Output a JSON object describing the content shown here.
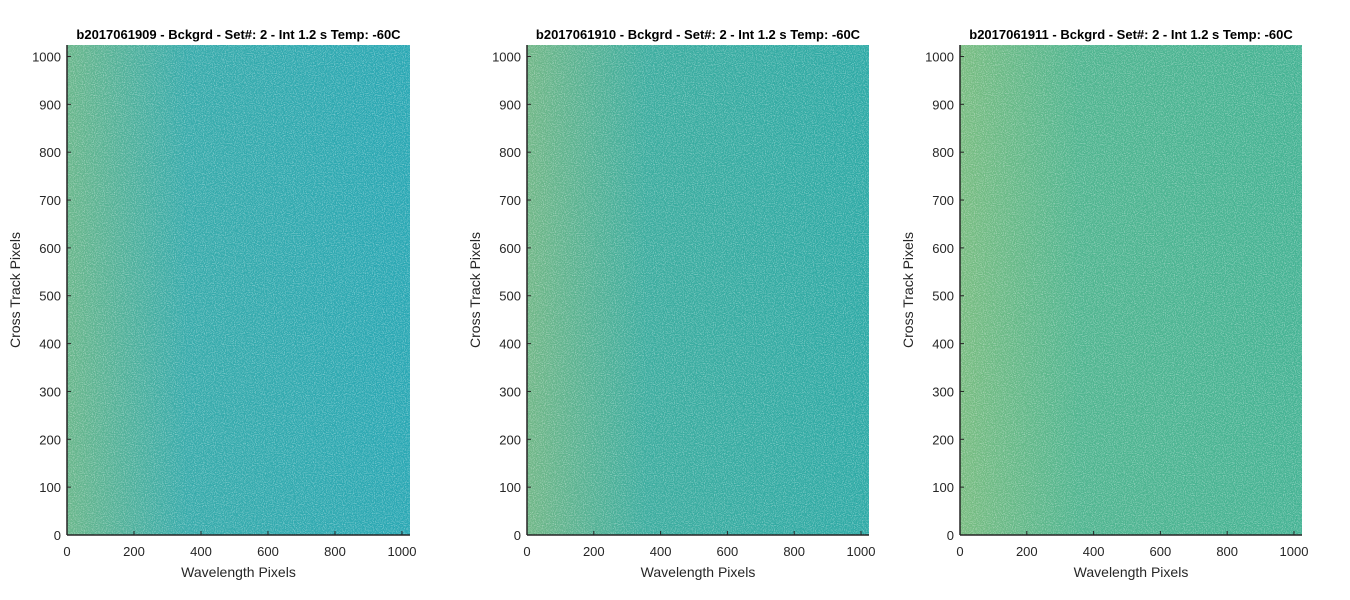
{
  "chart_data": [
    {
      "type": "heatmap",
      "title": "b2017061909 - Bckgrd - Set#: 2 - Int 1.2 s Temp: -60C",
      "xlabel": "Wavelength Pixels",
      "ylabel": "Cross Track Pixels",
      "xlim": [
        0,
        1024
      ],
      "ylim": [
        0,
        1024
      ],
      "xticks": [
        0,
        200,
        400,
        600,
        800,
        1000
      ],
      "yticks": [
        0,
        100,
        200,
        300,
        400,
        500,
        600,
        700,
        800,
        900,
        1000
      ],
      "grid": false,
      "colormap": "parula",
      "colors": {
        "base": "#2aa8b4",
        "noise": "#b0c75a",
        "edge": "#9ec36a"
      }
    },
    {
      "type": "heatmap",
      "title": "b2017061910 - Bckgrd - Set#: 2 - Int 1.2 s Temp: -60C",
      "xlabel": "Wavelength Pixels",
      "ylabel": "Cross Track Pixels",
      "xlim": [
        0,
        1024
      ],
      "ylim": [
        0,
        1024
      ],
      "xticks": [
        0,
        200,
        400,
        600,
        800,
        1000
      ],
      "yticks": [
        0,
        100,
        200,
        300,
        400,
        500,
        600,
        700,
        800,
        900,
        1000
      ],
      "grid": false,
      "colormap": "parula",
      "colors": {
        "base": "#2eaaa6",
        "noise": "#b8c862",
        "edge": "#a8c26e"
      }
    },
    {
      "type": "heatmap",
      "title": "b2017061911 - Bckgrd - Set#: 2 - Int 1.2 s Temp: -60C",
      "xlabel": "Wavelength Pixels",
      "ylabel": "Cross Track Pixels",
      "xlim": [
        0,
        1024
      ],
      "ylim": [
        0,
        1024
      ],
      "xticks": [
        0,
        200,
        400,
        600,
        800,
        1000
      ],
      "yticks": [
        0,
        100,
        200,
        300,
        400,
        500,
        600,
        700,
        800,
        900,
        1000
      ],
      "grid": false,
      "colormap": "parula",
      "colors": {
        "base": "#45b394",
        "noise": "#c2c85c",
        "edge": "#a4c572"
      }
    }
  ]
}
